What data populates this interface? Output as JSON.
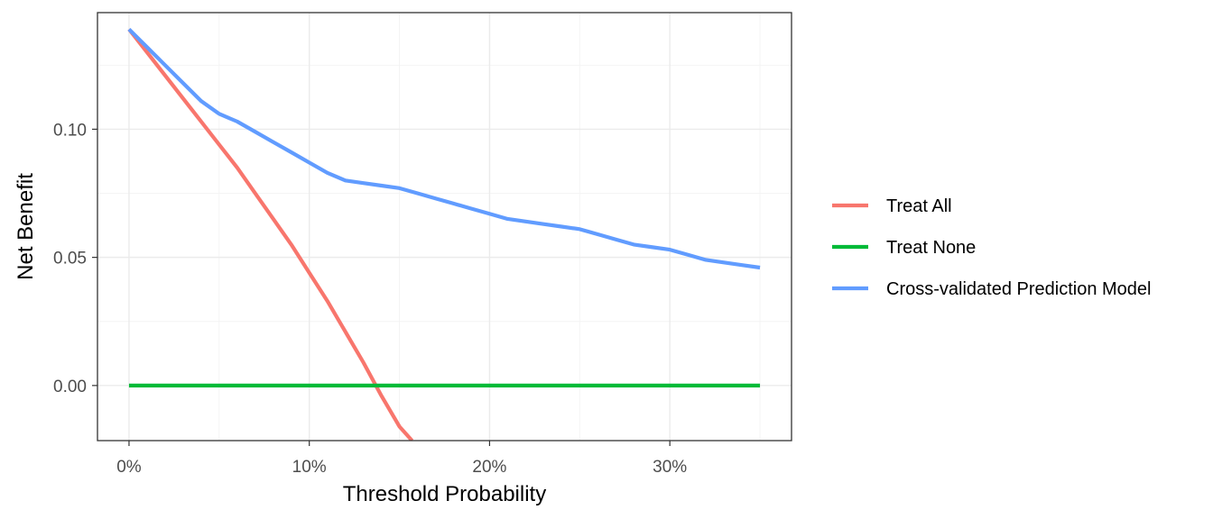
{
  "chart_data": {
    "type": "line",
    "title": "",
    "xlabel": "Threshold Probability",
    "ylabel": "Net Benefit",
    "xlim": [
      -0.0175,
      0.3675
    ],
    "ylim": [
      -0.0215,
      0.1455
    ],
    "x_ticks": [
      0,
      0.1,
      0.2,
      0.3
    ],
    "x_tick_labels": [
      "0%",
      "10%",
      "20%",
      "30%"
    ],
    "y_ticks": [
      0,
      0.05,
      0.1
    ],
    "y_tick_labels": [
      "0.00",
      "0.05",
      "0.10"
    ],
    "grid": true,
    "legend_position": "right",
    "series": [
      {
        "name": "Treat All",
        "color": "#f8766d",
        "x": [
          0,
          0.01,
          0.02,
          0.03,
          0.04,
          0.05,
          0.06,
          0.07,
          0.08,
          0.09,
          0.1,
          0.11,
          0.12,
          0.13,
          0.14,
          0.15,
          0.157
        ],
        "y": [
          0.139,
          0.13,
          0.121,
          0.112,
          0.103,
          0.094,
          0.085,
          0.075,
          0.065,
          0.055,
          0.044,
          0.033,
          0.021,
          0.009,
          -0.004,
          -0.016,
          -0.0215
        ]
      },
      {
        "name": "Treat None",
        "color": "#00ba38",
        "x": [
          0,
          0.35
        ],
        "y": [
          0,
          0
        ]
      },
      {
        "name": "Cross-validated Prediction Model",
        "color": "#619cff",
        "x": [
          0,
          0.01,
          0.02,
          0.03,
          0.04,
          0.05,
          0.06,
          0.07,
          0.08,
          0.09,
          0.1,
          0.11,
          0.12,
          0.13,
          0.14,
          0.15,
          0.16,
          0.17,
          0.18,
          0.19,
          0.2,
          0.21,
          0.22,
          0.23,
          0.24,
          0.25,
          0.26,
          0.27,
          0.28,
          0.29,
          0.3,
          0.31,
          0.32,
          0.33,
          0.34,
          0.35
        ],
        "y": [
          0.139,
          0.132,
          0.125,
          0.118,
          0.111,
          0.106,
          0.103,
          0.099,
          0.095,
          0.091,
          0.087,
          0.083,
          0.08,
          0.079,
          0.078,
          0.077,
          0.075,
          0.073,
          0.071,
          0.069,
          0.067,
          0.065,
          0.064,
          0.063,
          0.062,
          0.061,
          0.059,
          0.057,
          0.055,
          0.054,
          0.053,
          0.051,
          0.049,
          0.048,
          0.047,
          0.046
        ]
      }
    ]
  }
}
